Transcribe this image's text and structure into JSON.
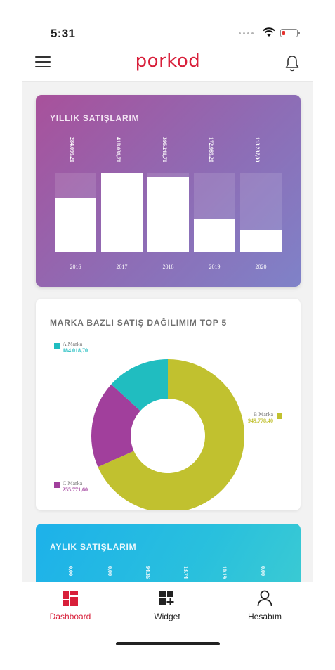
{
  "status": {
    "time": "5:31"
  },
  "header": {
    "logo": "porkod"
  },
  "yearly": {
    "title": "YILLIK SATIŞLARIM",
    "bars": [
      {
        "year": "2016",
        "value_label": "284.099,20",
        "fill": 0.68
      },
      {
        "year": "2017",
        "value_label": "418.031,70",
        "fill": 1.0
      },
      {
        "year": "2018",
        "value_label": "396.241,70",
        "fill": 0.95
      },
      {
        "year": "2019",
        "value_label": "172.989,20",
        "fill": 0.41
      },
      {
        "year": "2020",
        "value_label": "118.237,00",
        "fill": 0.28
      }
    ]
  },
  "brand": {
    "title": "MARKA BAZLI SATIŞ DAĞILIMIM TOP 5",
    "slices": [
      {
        "name": "A Marka",
        "value": "184.018,70",
        "amount": 184018.7,
        "color": "#20bdc0"
      },
      {
        "name": "B Marka",
        "value": "949.778,40",
        "amount": 949778.4,
        "color": "#c1c12f"
      },
      {
        "name": "C Marka",
        "value": "255.771,60",
        "amount": 255771.6,
        "color": "#a13f9c"
      }
    ]
  },
  "monthly": {
    "title": "AYLIK SATIŞLARIM",
    "values": [
      "0,00",
      "0,00",
      "94.36",
      "13.74",
      "10.19",
      "0,00"
    ]
  },
  "tabs": [
    {
      "label": "Dashboard",
      "icon": "dashboard-icon",
      "active": true
    },
    {
      "label": "Widget",
      "icon": "widget-add-icon",
      "active": false
    },
    {
      "label": "Hesabım",
      "icon": "user-icon",
      "active": false
    }
  ],
  "colors": {
    "accent": "#d81f3a"
  }
}
